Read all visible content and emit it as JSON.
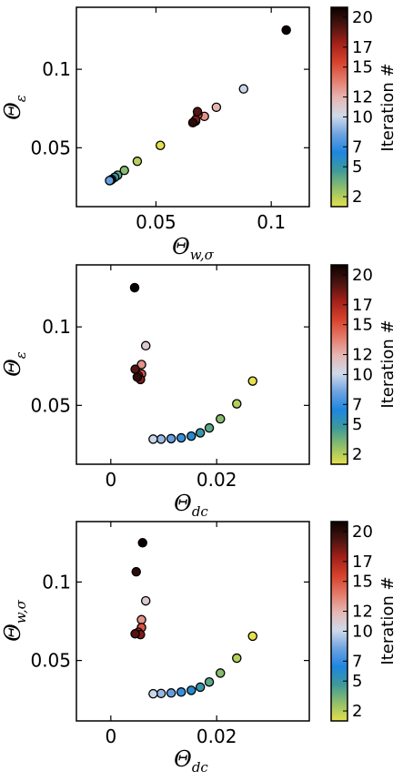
{
  "colors": {
    "colormap": [
      "#e5e04c",
      "#8fbf6b",
      "#3e9a9a",
      "#1e86e0",
      "#6fa3e0",
      "#cfdaea",
      "#e6b7b3",
      "#e47a6a",
      "#d6422c",
      "#a32119",
      "#4a1410",
      "#0a0000"
    ],
    "marker_edge": "#000000"
  },
  "chart_data": [
    {
      "type": "scatter",
      "xlabel": "Θw,σ",
      "xlabel_main": "Θ",
      "xlabel_sub": "w,σ",
      "ylabel": "Θε",
      "ylabel_main": "Θ",
      "ylabel_sub": "ε",
      "xlim": [
        0.0155,
        0.1165
      ],
      "ylim": [
        0.0125,
        0.1395
      ],
      "xticks": [
        0.05,
        0.1
      ],
      "xtick_labels": [
        "0.05",
        "0.1"
      ],
      "yticks": [
        0.05,
        0.1
      ],
      "ytick_labels": [
        "0.05",
        "0.1"
      ],
      "grid": false,
      "colorbar": {
        "label": "Iteration #",
        "range": [
          1,
          21
        ],
        "ticks": [
          2,
          5,
          7,
          10,
          12,
          15,
          17,
          20
        ]
      },
      "points": [
        {
          "iteration": 1,
          "x": 0.0519,
          "y": 0.0515
        },
        {
          "iteration": 2,
          "x": 0.0419,
          "y": 0.0414
        },
        {
          "iteration": 3,
          "x": 0.0363,
          "y": 0.0356
        },
        {
          "iteration": 4,
          "x": 0.0334,
          "y": 0.0325
        },
        {
          "iteration": 5,
          "x": 0.0321,
          "y": 0.0312
        },
        {
          "iteration": 6,
          "x": 0.0308,
          "y": 0.0298
        },
        {
          "iteration": 7,
          "x": 0.0303,
          "y": 0.0293
        },
        {
          "iteration": 8,
          "x": 0.0299,
          "y": 0.0291
        },
        {
          "iteration": 10,
          "x": 0.088,
          "y": 0.0875
        },
        {
          "iteration": 12,
          "x": 0.0762,
          "y": 0.0758
        },
        {
          "iteration": 13,
          "x": 0.071,
          "y": 0.07
        },
        {
          "iteration": 15,
          "x": 0.0682,
          "y": 0.0712
        },
        {
          "iteration": 17,
          "x": 0.0672,
          "y": 0.067
        },
        {
          "iteration": 18,
          "x": 0.0672,
          "y": 0.0678
        },
        {
          "iteration": 19,
          "x": 0.068,
          "y": 0.073
        },
        {
          "iteration": 20,
          "x": 0.066,
          "y": 0.066
        },
        {
          "iteration": 21,
          "x": 0.1065,
          "y": 0.125
        }
      ]
    },
    {
      "type": "scatter",
      "xlabel": "Θdc",
      "xlabel_main": "Θ",
      "xlabel_sub": "dc",
      "ylabel": "Θε",
      "ylabel_main": "Θ",
      "ylabel_sub": "ε",
      "xlim": [
        -0.0065,
        0.0375
      ],
      "ylim": [
        0.0125,
        0.1395
      ],
      "xticks": [
        0,
        0.02
      ],
      "xtick_labels": [
        "0",
        "0.02"
      ],
      "yticks": [
        0.05,
        0.1
      ],
      "ytick_labels": [
        "0.05",
        "0.1"
      ],
      "grid": false,
      "colorbar": {
        "label": "Iteration #",
        "range": [
          1,
          21
        ],
        "ticks": [
          2,
          5,
          7,
          10,
          12,
          15,
          17,
          20
        ]
      },
      "points": [
        {
          "iteration": 1,
          "x": 0.0268,
          "y": 0.0655
        },
        {
          "iteration": 2,
          "x": 0.0238,
          "y": 0.051
        },
        {
          "iteration": 3,
          "x": 0.0207,
          "y": 0.0414
        },
        {
          "iteration": 4,
          "x": 0.0186,
          "y": 0.0356
        },
        {
          "iteration": 5,
          "x": 0.0169,
          "y": 0.0325
        },
        {
          "iteration": 6,
          "x": 0.0152,
          "y": 0.0304
        },
        {
          "iteration": 7,
          "x": 0.0133,
          "y": 0.0293
        },
        {
          "iteration": 8,
          "x": 0.0114,
          "y": 0.0288
        },
        {
          "iteration": 9,
          "x": 0.0095,
          "y": 0.0285
        },
        {
          "iteration": 10,
          "x": 0.008,
          "y": 0.0285
        },
        {
          "iteration": 11,
          "x": 0.0066,
          "y": 0.088
        },
        {
          "iteration": 13,
          "x": 0.0058,
          "y": 0.076
        },
        {
          "iteration": 15,
          "x": 0.0058,
          "y": 0.07
        },
        {
          "iteration": 17,
          "x": 0.0052,
          "y": 0.069
        },
        {
          "iteration": 18,
          "x": 0.0056,
          "y": 0.0665
        },
        {
          "iteration": 19,
          "x": 0.0046,
          "y": 0.073
        },
        {
          "iteration": 20,
          "x": 0.005,
          "y": 0.068
        },
        {
          "iteration": 21,
          "x": 0.0045,
          "y": 0.125
        }
      ]
    },
    {
      "type": "scatter",
      "xlabel": "Θdc",
      "xlabel_main": "Θ",
      "xlabel_sub": "dc",
      "ylabel": "Θw,σ",
      "ylabel_main": "Θ",
      "ylabel_sub": "w,σ",
      "xlim": [
        -0.0065,
        0.0375
      ],
      "ylim": [
        0.0115,
        0.1385
      ],
      "xticks": [
        0,
        0.02
      ],
      "xtick_labels": [
        "0",
        "0.02"
      ],
      "yticks": [
        0.05,
        0.1
      ],
      "ytick_labels": [
        "0.05",
        "0.1"
      ],
      "grid": false,
      "colorbar": {
        "label": "Iteration #",
        "range": [
          1,
          21
        ],
        "ticks": [
          2,
          5,
          7,
          10,
          12,
          15,
          17,
          20
        ]
      },
      "points": [
        {
          "iteration": 1,
          "x": 0.0268,
          "y": 0.0655
        },
        {
          "iteration": 2,
          "x": 0.0238,
          "y": 0.0515
        },
        {
          "iteration": 3,
          "x": 0.0207,
          "y": 0.042
        },
        {
          "iteration": 4,
          "x": 0.0186,
          "y": 0.0363
        },
        {
          "iteration": 5,
          "x": 0.0169,
          "y": 0.033
        },
        {
          "iteration": 6,
          "x": 0.0152,
          "y": 0.031
        },
        {
          "iteration": 7,
          "x": 0.0133,
          "y": 0.0299
        },
        {
          "iteration": 8,
          "x": 0.0114,
          "y": 0.0293
        },
        {
          "iteration": 9,
          "x": 0.0095,
          "y": 0.029
        },
        {
          "iteration": 10,
          "x": 0.008,
          "y": 0.0288
        },
        {
          "iteration": 11,
          "x": 0.0066,
          "y": 0.088
        },
        {
          "iteration": 13,
          "x": 0.0058,
          "y": 0.076
        },
        {
          "iteration": 15,
          "x": 0.0058,
          "y": 0.071
        },
        {
          "iteration": 17,
          "x": 0.0052,
          "y": 0.068
        },
        {
          "iteration": 18,
          "x": 0.0056,
          "y": 0.0665
        },
        {
          "iteration": 19,
          "x": 0.0046,
          "y": 0.067
        },
        {
          "iteration": 20,
          "x": 0.0048,
          "y": 0.1065
        },
        {
          "iteration": 21,
          "x": 0.006,
          "y": 0.125
        }
      ]
    }
  ]
}
